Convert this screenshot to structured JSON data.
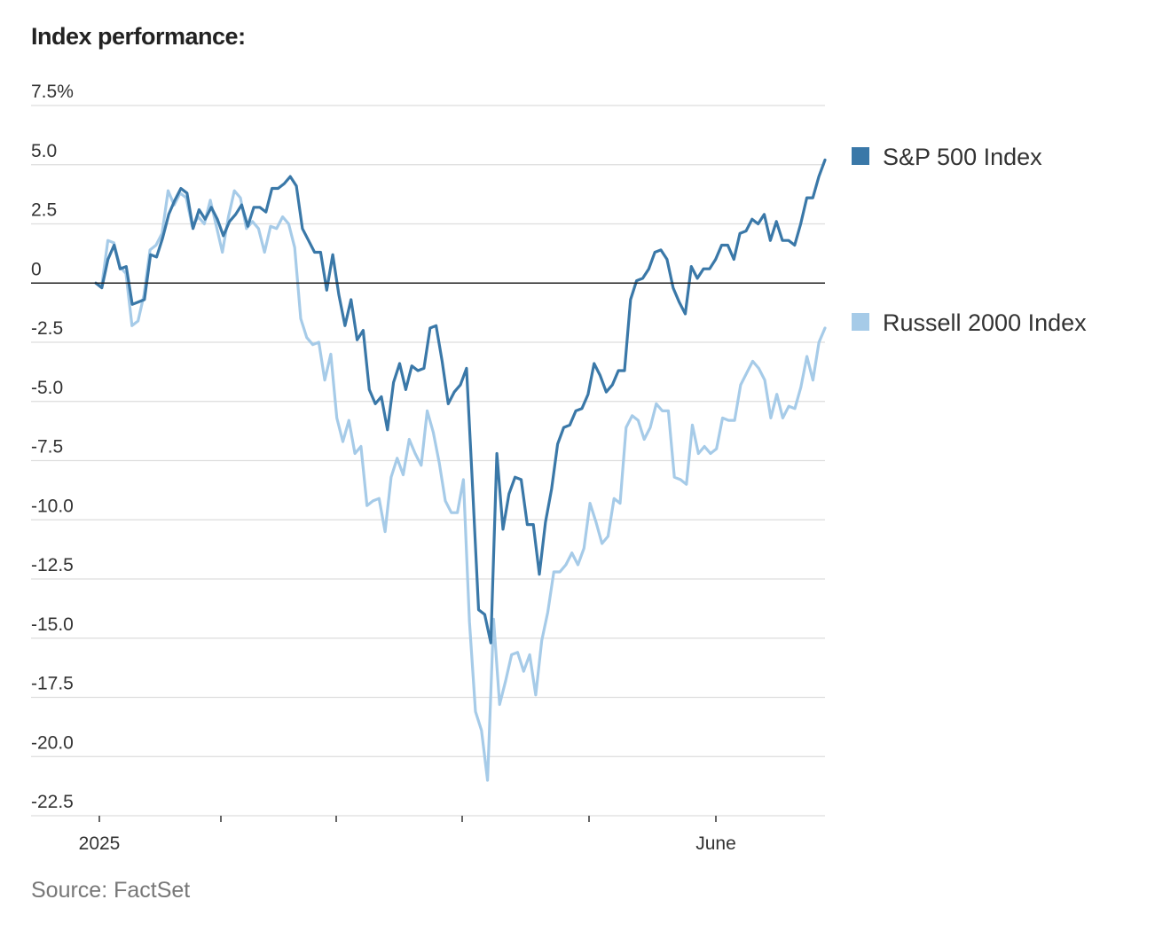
{
  "title": "Index performance:",
  "source": "Source: FactSet",
  "colors": {
    "sp500": "#3a78a8",
    "russell": "#a6cbe8",
    "grid": "#dddddd",
    "zero": "#222222"
  },
  "chart_data": {
    "type": "line",
    "title": "Index performance:",
    "xlabel": "",
    "ylabel": "",
    "ylim": [
      -22.5,
      7.5
    ],
    "y_ticks": [
      7.5,
      5.0,
      2.5,
      0,
      -2.5,
      -5.0,
      -7.5,
      -10.0,
      -12.5,
      -15.0,
      -17.5,
      -20.0,
      -22.5
    ],
    "y_tick_labels": [
      "7.5%",
      "5.0",
      "2.5",
      "0",
      "-2.5",
      "-5.0",
      "-7.5",
      "-10.0",
      "-12.5",
      "-15.0",
      "-17.5",
      "-20.0",
      "-22.5"
    ],
    "x_tick_labels": [
      "2025",
      "June"
    ],
    "grid": true,
    "legend_position": "right",
    "series": [
      {
        "name": "S&P 500 Index",
        "values": [
          0.0,
          -0.2,
          1.0,
          1.6,
          0.6,
          0.7,
          -0.9,
          -0.8,
          -0.7,
          1.2,
          1.1,
          1.9,
          2.9,
          3.5,
          4.0,
          3.8,
          2.3,
          3.1,
          2.7,
          3.2,
          2.7,
          2.0,
          2.6,
          2.9,
          3.3,
          2.4,
          3.2,
          3.2,
          3.0,
          4.0,
          4.0,
          4.2,
          4.5,
          4.1,
          2.3,
          1.8,
          1.3,
          1.3,
          -0.3,
          1.2,
          -0.5,
          -1.8,
          -0.7,
          -2.4,
          -2.0,
          -4.5,
          -5.1,
          -4.8,
          -6.2,
          -4.2,
          -3.4,
          -4.5,
          -3.5,
          -3.7,
          -3.6,
          -1.9,
          -1.8,
          -3.3,
          -5.1,
          -4.6,
          -4.3,
          -3.6,
          -8.6,
          -13.8,
          -14.0,
          -15.2,
          -7.2,
          -10.4,
          -8.9,
          -8.2,
          -8.3,
          -10.2,
          -10.2,
          -12.3,
          -10.1,
          -8.7,
          -6.8,
          -6.1,
          -6.0,
          -5.4,
          -5.3,
          -4.7,
          -3.4,
          -3.9,
          -4.6,
          -4.3,
          -3.7,
          -3.7,
          -0.7,
          0.1,
          0.2,
          0.6,
          1.3,
          1.4,
          1.0,
          -0.2,
          -0.8,
          -1.3,
          0.7,
          0.2,
          0.6,
          0.6,
          1.0,
          1.6,
          1.6,
          1.0,
          2.1,
          2.2,
          2.7,
          2.5,
          2.9,
          1.8,
          2.6,
          1.8,
          1.8,
          1.6,
          2.5,
          3.6,
          3.6,
          4.5,
          5.2
        ]
      },
      {
        "name": "Russell 2000 Index",
        "values": [
          0.0,
          -0.1,
          1.8,
          1.7,
          0.7,
          0.4,
          -1.8,
          -1.6,
          -0.5,
          1.4,
          1.6,
          2.1,
          3.9,
          3.3,
          3.8,
          3.6,
          2.4,
          2.8,
          2.5,
          3.5,
          2.4,
          1.3,
          2.8,
          3.9,
          3.6,
          2.3,
          2.6,
          2.3,
          1.3,
          2.4,
          2.3,
          2.8,
          2.5,
          1.5,
          -1.5,
          -2.3,
          -2.6,
          -2.5,
          -4.1,
          -3.0,
          -5.7,
          -6.7,
          -5.8,
          -7.2,
          -6.9,
          -9.4,
          -9.2,
          -9.1,
          -10.5,
          -8.2,
          -7.4,
          -8.1,
          -6.6,
          -7.2,
          -7.7,
          -5.4,
          -6.3,
          -7.6,
          -9.2,
          -9.7,
          -9.7,
          -8.3,
          -14.3,
          -18.1,
          -18.9,
          -21.0,
          -14.2,
          -17.8,
          -16.8,
          -15.7,
          -15.6,
          -16.4,
          -15.7,
          -17.4,
          -15.1,
          -13.9,
          -12.2,
          -12.2,
          -11.9,
          -11.4,
          -11.9,
          -11.2,
          -9.3,
          -10.1,
          -11.0,
          -10.7,
          -9.1,
          -9.3,
          -6.1,
          -5.6,
          -5.8,
          -6.6,
          -6.1,
          -5.1,
          -5.4,
          -5.4,
          -8.2,
          -8.3,
          -8.5,
          -6.0,
          -7.2,
          -6.9,
          -7.2,
          -7.0,
          -5.7,
          -5.8,
          -5.8,
          -4.3,
          -3.8,
          -3.3,
          -3.6,
          -4.1,
          -5.7,
          -4.7,
          -5.7,
          -5.2,
          -5.3,
          -4.4,
          -3.1,
          -4.1,
          -2.5,
          -1.9
        ]
      }
    ]
  }
}
